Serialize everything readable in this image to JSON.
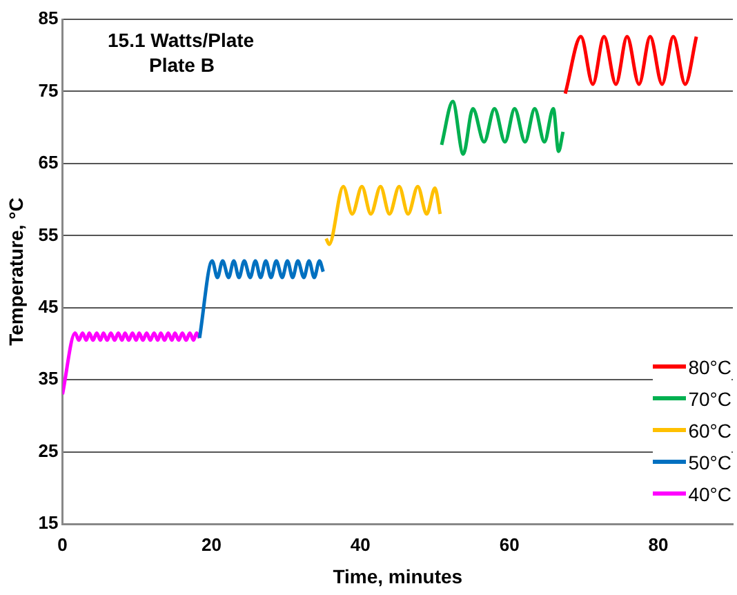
{
  "chart_data": {
    "type": "line",
    "title": "15.1 Watts/Plate",
    "subtitle": "Plate B",
    "xlabel": "Time, minutes",
    "ylabel": "Temperature, °C",
    "xlim": [
      0,
      90
    ],
    "xticks": [
      0,
      20,
      40,
      60,
      80
    ],
    "ylim": [
      15,
      85
    ],
    "yticks": [
      15,
      25,
      35,
      45,
      55,
      65,
      75,
      85
    ],
    "grid": "y",
    "legend": "bottom right",
    "marker": "none",
    "line_style": "solid",
    "series": [
      {
        "name": "80°C",
        "color": "#ff0000",
        "x": [
          67.5,
          69.6,
          71.2,
          72.7,
          74.3,
          75.8,
          77.4,
          78.9,
          80.5,
          82.0,
          83.6,
          85.1
        ],
        "values": [
          74.7,
          82.6,
          76,
          82.6,
          76,
          82.6,
          76,
          82.6,
          76,
          82.6,
          76,
          82.6
        ]
      },
      {
        "name": "70°C",
        "color": "#00b050",
        "x": [
          50.9,
          52.4,
          53.8,
          55.1,
          56.6,
          58.0,
          59.4,
          60.7,
          62.1,
          63.4,
          64.7,
          65.9,
          66.6,
          67.2
        ],
        "values": [
          67.6,
          73.6,
          66.3,
          72.6,
          68,
          72.6,
          68,
          72.6,
          68,
          72.6,
          68,
          72.6,
          66.7,
          69.4
        ]
      },
      {
        "name": "60°C",
        "color": "#ffc000",
        "x": [
          35.4,
          35.8,
          37.7,
          38.9,
          40.2,
          41.4,
          42.7,
          43.9,
          45.2,
          46.4,
          47.7,
          48.9,
          50.0,
          50.7
        ],
        "values": [
          54.6,
          53.8,
          61.8,
          58,
          61.8,
          58,
          61.8,
          58,
          61.8,
          58,
          61.8,
          58,
          61.6,
          58
        ]
      },
      {
        "name": "50°C",
        "color": "#0070c0",
        "x": [
          18.4,
          20.1,
          20.8,
          21.5,
          22.3,
          23.0,
          23.7,
          24.4,
          25.2,
          25.9,
          26.6,
          27.3,
          28.0,
          28.7,
          29.5,
          30.2,
          30.9,
          31.6,
          32.4,
          33.1,
          33.8,
          34.5,
          35.0
        ],
        "values": [
          40.8,
          51.5,
          49.2,
          51.5,
          49.2,
          51.5,
          49.2,
          51.5,
          49.2,
          51.5,
          49.2,
          51.5,
          49.2,
          51.5,
          49.2,
          51.5,
          49.2,
          51.5,
          49.2,
          51.5,
          49.2,
          51.5,
          50
        ]
      },
      {
        "name": "40°C",
        "color": "#ff00ff",
        "x": [
          0,
          1.7,
          2.2,
          2.7,
          3.2,
          3.6,
          4.1,
          4.6,
          5.1,
          5.5,
          6.0,
          6.5,
          7.0,
          7.5,
          8.0,
          8.4,
          8.9,
          9.4,
          9.9,
          10.3,
          10.8,
          11.3,
          11.8,
          12.3,
          12.8,
          13.2,
          13.7,
          14.2,
          14.7,
          15.1,
          15.6,
          16.1,
          16.6,
          17.1,
          17.6,
          18.0,
          18.4
        ],
        "values": [
          33,
          41.5,
          40.5,
          41.5,
          40.5,
          41.5,
          40.5,
          41.5,
          40.5,
          41.5,
          40.5,
          41.5,
          40.5,
          41.5,
          40.5,
          41.5,
          40.5,
          41.5,
          40.5,
          41.5,
          40.5,
          41.5,
          40.5,
          41.5,
          40.5,
          41.5,
          40.5,
          41.5,
          40.5,
          41.5,
          40.5,
          41.5,
          40.5,
          41.5,
          40.5,
          41.5,
          40.8
        ]
      }
    ]
  }
}
